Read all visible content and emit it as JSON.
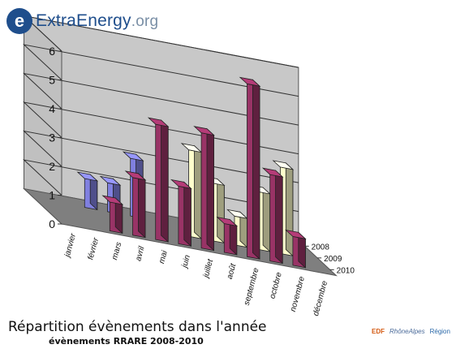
{
  "logo": {
    "brand": "ExtraEnergy",
    "suffix": ".org"
  },
  "caption": {
    "title": "Répartition évènements dans l'année",
    "subtitle": "évènements RRARE 2008-2010"
  },
  "partners": [
    "EDF",
    "RhôneAlpes",
    "Région"
  ],
  "colors": {
    "s2008": "#8080e0",
    "s2009": "#ffffcc",
    "s2010": "#993366"
  },
  "chart_data": {
    "type": "bar",
    "title": "Répartition évènements dans l'année",
    "subtitle": "évènements RRARE 2008-2010",
    "categories": [
      "janvier",
      "février",
      "mars",
      "avril",
      "mai",
      "juin",
      "juillet",
      "août",
      "septembre",
      "octobre",
      "novembre",
      "décembre"
    ],
    "series": [
      {
        "name": "2008",
        "values": [
          0,
          0,
          1,
          1,
          2,
          0,
          0,
          0,
          0,
          0,
          0,
          0
        ]
      },
      {
        "name": "2009",
        "values": [
          0,
          0,
          0,
          0,
          0,
          0,
          3,
          2,
          1,
          2,
          3,
          0
        ]
      },
      {
        "name": "2010",
        "values": [
          0,
          0,
          1,
          2,
          4,
          2,
          4,
          1,
          6,
          3,
          1,
          0
        ]
      }
    ],
    "yticks": [
      0,
      1,
      2,
      3,
      4,
      5,
      6
    ],
    "ylim": [
      0,
      6
    ],
    "grid": true
  }
}
